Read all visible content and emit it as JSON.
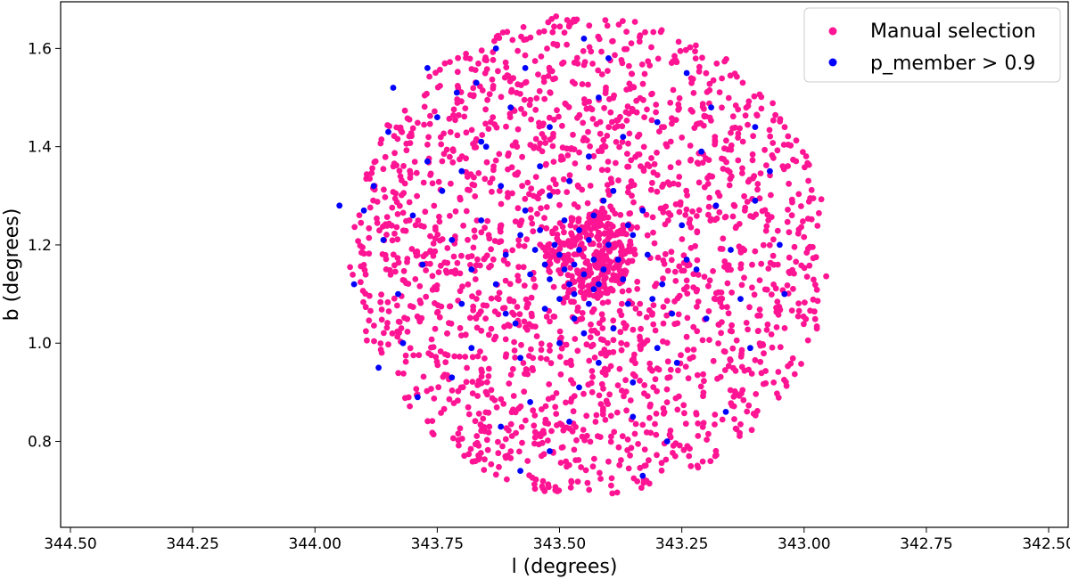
{
  "chart_data": {
    "type": "scatter",
    "xlabel": "l (degrees)",
    "ylabel": "b (degrees)",
    "xlim": [
      344.52,
      342.46
    ],
    "ylim": [
      0.625,
      1.695
    ],
    "x_reversed": true,
    "grid": false,
    "legend_placement": "top-right",
    "xticks": [
      344.5,
      344.25,
      344.0,
      343.75,
      343.5,
      343.25,
      343.0,
      342.75,
      342.5
    ],
    "xtick_labels": [
      "344.50",
      "344.25",
      "344.00",
      "343.75",
      "343.50",
      "343.25",
      "343.00",
      "342.75",
      "342.50"
    ],
    "yticks": [
      0.8,
      1.0,
      1.2,
      1.4,
      1.6
    ],
    "ytick_labels": [
      "0.8",
      "1.0",
      "1.2",
      "1.4",
      "1.6"
    ],
    "legend": [
      {
        "name": "Manual selection",
        "color": "#ff1493"
      },
      {
        "name": "p_member > 0.9",
        "color": "#0000ff"
      }
    ],
    "series": [
      {
        "name": "Manual selection",
        "color": "#ff1493",
        "distribution": {
          "shape": "disk",
          "center_l": 343.44,
          "center_b": 1.18,
          "radius": 0.49,
          "count": 2200,
          "core_fraction": 0.12,
          "core_radius": 0.09
        }
      },
      {
        "name": "p_member > 0.9",
        "color": "#0000ff",
        "points": [
          [
            343.49,
            1.15
          ],
          [
            343.47,
            1.16
          ],
          [
            343.45,
            1.14
          ],
          [
            343.52,
            1.13
          ],
          [
            343.5,
            1.18
          ],
          [
            343.46,
            1.19
          ],
          [
            343.43,
            1.17
          ],
          [
            343.48,
            1.12
          ],
          [
            343.44,
            1.21
          ],
          [
            343.41,
            1.15
          ],
          [
            343.53,
            1.16
          ],
          [
            343.51,
            1.2
          ],
          [
            343.47,
            1.1
          ],
          [
            343.42,
            1.12
          ],
          [
            343.55,
            1.19
          ],
          [
            343.46,
            1.23
          ],
          [
            343.4,
            1.2
          ],
          [
            343.5,
            1.09
          ],
          [
            343.56,
            1.14
          ],
          [
            343.44,
            1.08
          ],
          [
            343.38,
            1.17
          ],
          [
            343.49,
            1.25
          ],
          [
            343.53,
            1.07
          ],
          [
            343.58,
            1.22
          ],
          [
            343.43,
            1.26
          ],
          [
            343.37,
            1.13
          ],
          [
            343.61,
            1.18
          ],
          [
            343.47,
            1.05
          ],
          [
            343.35,
            1.22
          ],
          [
            343.57,
            1.27
          ],
          [
            343.41,
            1.29
          ],
          [
            343.63,
            1.12
          ],
          [
            343.52,
            1.3
          ],
          [
            343.36,
            1.08
          ],
          [
            343.45,
            1.02
          ],
          [
            343.66,
            1.25
          ],
          [
            343.32,
            1.18
          ],
          [
            343.48,
            1.33
          ],
          [
            343.59,
            1.04
          ],
          [
            343.39,
            1.03
          ],
          [
            343.29,
            1.12
          ],
          [
            343.68,
            1.15
          ],
          [
            343.54,
            1.36
          ],
          [
            343.44,
            1.38
          ],
          [
            343.33,
            1.27
          ],
          [
            343.72,
            1.21
          ],
          [
            343.62,
            1.32
          ],
          [
            343.27,
            1.06
          ],
          [
            343.7,
            1.08
          ],
          [
            343.5,
            1.0
          ],
          [
            343.3,
            0.99
          ],
          [
            343.74,
            1.31
          ],
          [
            343.25,
            1.24
          ],
          [
            343.58,
            0.97
          ],
          [
            343.42,
            0.96
          ],
          [
            343.78,
            1.16
          ],
          [
            343.22,
            1.15
          ],
          [
            343.65,
            1.4
          ],
          [
            343.37,
            1.42
          ],
          [
            343.8,
            1.26
          ],
          [
            343.2,
            1.05
          ],
          [
            343.68,
            0.99
          ],
          [
            343.52,
            1.44
          ],
          [
            343.83,
            1.1
          ],
          [
            343.18,
            1.28
          ],
          [
            343.46,
            0.91
          ],
          [
            343.35,
            0.92
          ],
          [
            343.77,
            1.37
          ],
          [
            343.15,
            1.19
          ],
          [
            343.6,
            1.48
          ],
          [
            343.72,
            0.93
          ],
          [
            343.26,
            0.96
          ],
          [
            343.86,
            1.21
          ],
          [
            343.13,
            1.09
          ],
          [
            343.42,
            1.5
          ],
          [
            343.56,
            0.88
          ],
          [
            343.88,
            1.32
          ],
          [
            343.1,
            1.29
          ],
          [
            343.3,
            1.45
          ],
          [
            343.82,
            1.0
          ],
          [
            343.67,
            1.53
          ],
          [
            343.11,
            0.99
          ],
          [
            343.9,
            1.27
          ],
          [
            343.48,
            0.84
          ],
          [
            343.35,
            0.85
          ],
          [
            343.75,
            1.46
          ],
          [
            343.07,
            1.35
          ],
          [
            343.85,
            1.43
          ],
          [
            343.21,
            1.39
          ],
          [
            343.62,
            0.83
          ],
          [
            343.05,
            1.2
          ],
          [
            343.92,
            1.12
          ],
          [
            343.57,
            1.56
          ],
          [
            343.28,
            0.8
          ],
          [
            343.79,
            0.89
          ],
          [
            343.16,
            0.86
          ],
          [
            343.4,
            1.58
          ],
          [
            343.71,
            1.51
          ],
          [
            343.04,
            1.1
          ],
          [
            343.87,
            0.95
          ],
          [
            343.52,
            0.78
          ],
          [
            343.24,
            1.55
          ],
          [
            343.63,
            1.6
          ],
          [
            343.95,
            1.28
          ],
          [
            343.1,
            1.44
          ],
          [
            343.45,
            1.62
          ],
          [
            343.77,
            1.56
          ],
          [
            343.33,
            0.73
          ],
          [
            343.58,
            0.74
          ],
          [
            343.84,
            1.52
          ],
          [
            343.19,
            1.48
          ],
          [
            343.66,
            1.41
          ],
          [
            343.39,
            1.31
          ],
          [
            343.54,
            1.23
          ],
          [
            343.31,
            1.09
          ],
          [
            343.61,
            1.06
          ],
          [
            343.43,
            1.11
          ],
          [
            343.36,
            1.24
          ],
          [
            343.7,
            1.35
          ],
          [
            343.24,
            1.17
          ]
        ]
      }
    ]
  }
}
